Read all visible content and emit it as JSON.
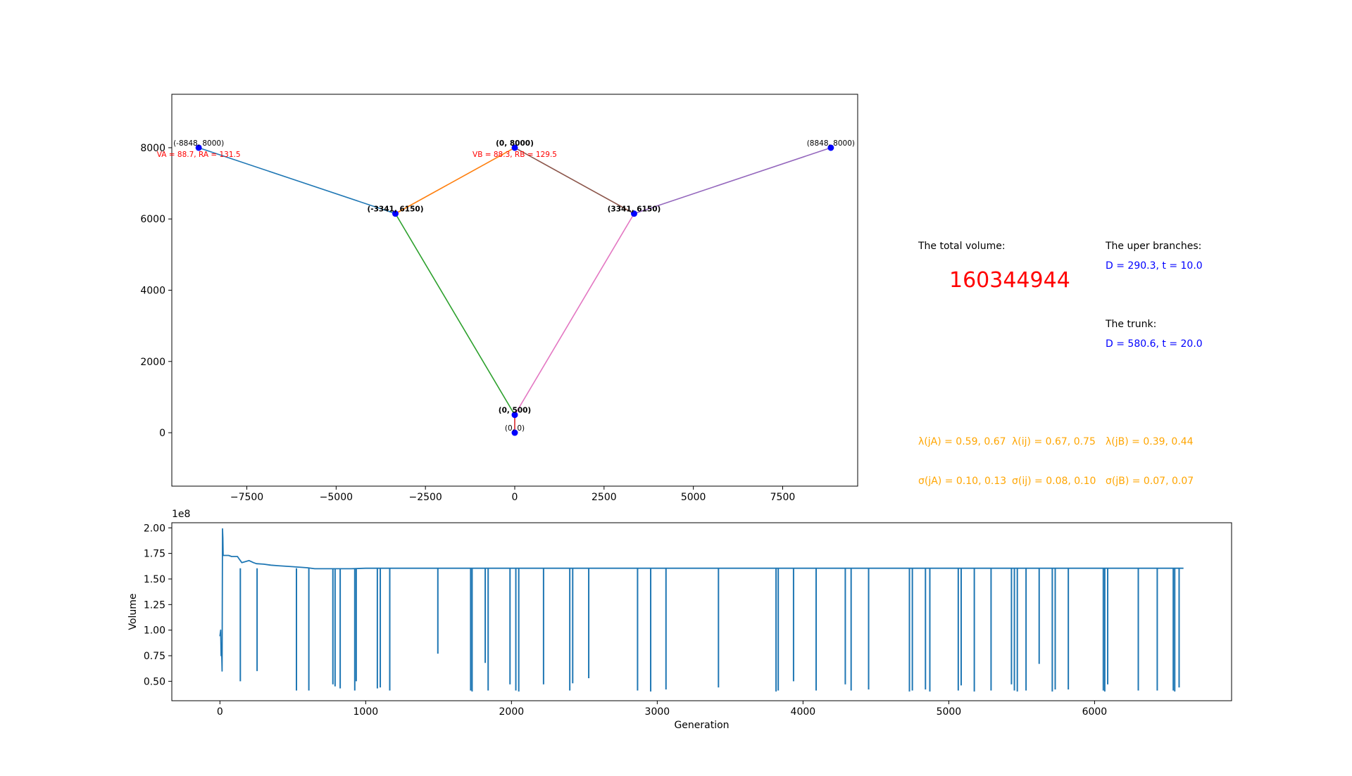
{
  "info": {
    "total_volume_label": "The total volume:",
    "total_volume_value": "160344944",
    "upper_branches_label": "The uper branches:",
    "upper_branches_value": "D = 290.3, t = 10.0",
    "trunk_label": "The trunk:",
    "trunk_value": "D = 580.6, t = 20.0",
    "lambda_jA": "λ(jA) = 0.59, 0.67",
    "lambda_ij": "λ(ij) = 0.67, 0.75",
    "lambda_jB": "λ(jB) = 0.39, 0.44",
    "sigma_jA": "σ(jA) = 0.10, 0.13",
    "sigma_ij": "σ(ij) = 0.08, 0.10",
    "sigma_jB": "σ(jB) = 0.07, 0.07"
  },
  "chart_data": [
    {
      "type": "line",
      "xlim": [
        -9600,
        9600
      ],
      "ylim": [
        -1500,
        9500
      ],
      "xticks": [
        -7500,
        -5000,
        -2500,
        0,
        2500,
        5000,
        7500
      ],
      "xtick_labels": [
        "−7500",
        "−5000",
        "−2500",
        "0",
        "2500",
        "5000",
        "7500"
      ],
      "yticks": [
        0,
        2000,
        4000,
        6000,
        8000
      ],
      "ytick_labels": [
        "0",
        "2000",
        "4000",
        "6000",
        "8000"
      ],
      "nodes": [
        {
          "x": -8848,
          "y": 8000,
          "label": "(-8848, 8000)",
          "bold": false
        },
        {
          "x": 0,
          "y": 8000,
          "label": "(0, 8000)",
          "bold": true
        },
        {
          "x": 8848,
          "y": 8000,
          "label": "(8848, 8000)",
          "bold": false
        },
        {
          "x": -3341,
          "y": 6150,
          "label": "(-3341, 6150)",
          "bold": true
        },
        {
          "x": 3341,
          "y": 6150,
          "label": "(3341, 6150)",
          "bold": true
        },
        {
          "x": 0,
          "y": 500,
          "label": "(0, 500)",
          "bold": true
        },
        {
          "x": 0,
          "y": 0,
          "label": "(0, 0)",
          "bold": false
        }
      ],
      "edges": [
        {
          "from": [
            -8848,
            8000
          ],
          "to": [
            -3341,
            6150
          ],
          "color": "#1f77b4"
        },
        {
          "from": [
            -3341,
            6150
          ],
          "to": [
            0,
            8000
          ],
          "color": "#ff7f0e"
        },
        {
          "from": [
            -3341,
            6150
          ],
          "to": [
            0,
            500
          ],
          "color": "#2ca02c"
        },
        {
          "from": [
            0,
            500
          ],
          "to": [
            0,
            0
          ],
          "color": "#d62728"
        },
        {
          "from": [
            0,
            8000
          ],
          "to": [
            3341,
            6150
          ],
          "color": "#8c564b"
        },
        {
          "from": [
            3341,
            6150
          ],
          "to": [
            8848,
            8000
          ],
          "color": "#9467bd"
        },
        {
          "from": [
            3341,
            6150
          ],
          "to": [
            0,
            500
          ],
          "color": "#e377c2"
        }
      ],
      "annotations": [
        {
          "text": "VA = 88.7, RA = 131.5",
          "x": -8848,
          "y": 7900,
          "color": "#ff0000"
        },
        {
          "text": "VB = 88.3, RB = 129.5",
          "x": 0,
          "y": 7900,
          "color": "#ff0000"
        }
      ]
    },
    {
      "type": "line",
      "xlabel": "Generation",
      "ylabel": "Volume",
      "offset_text": "1e8",
      "xlim": [
        -330,
        6940
      ],
      "ylim": [
        0.31,
        2.05
      ],
      "xticks": [
        0,
        1000,
        2000,
        3000,
        4000,
        5000,
        6000
      ],
      "xtick_labels": [
        "0",
        "1000",
        "2000",
        "3000",
        "4000",
        "5000",
        "6000"
      ],
      "yticks": [
        0.5,
        0.75,
        1.0,
        1.25,
        1.5,
        1.75,
        2.0
      ],
      "ytick_labels": [
        "0.50",
        "0.75",
        "1.00",
        "1.25",
        "1.50",
        "1.75",
        "2.00"
      ],
      "series": [
        {
          "color": "#1f77b4",
          "x": [
            0,
            5,
            8,
            12,
            15,
            18,
            20,
            22,
            25,
            40,
            60,
            80,
            100,
            120,
            130,
            150,
            200,
            230,
            250,
            300,
            350,
            400,
            500,
            600,
            650,
            700,
            800,
            900,
            1000,
            1500,
            2000,
            3000,
            4000,
            5000,
            6000,
            6500,
            6610
          ],
          "y": [
            0.94,
            1.0,
            0.75,
            0.78,
            0.6,
            1.99,
            1.9,
            1.73,
            1.73,
            1.73,
            1.73,
            1.72,
            1.72,
            1.72,
            1.7,
            1.66,
            1.68,
            1.66,
            1.65,
            1.645,
            1.635,
            1.63,
            1.62,
            1.61,
            1.6,
            1.6,
            1.6,
            1.6,
            1.605,
            1.605,
            1.605,
            1.605,
            1.605,
            1.605,
            1.605,
            1.605,
            1.605
          ],
          "baseline": 1.605,
          "dips": [
            [
              140,
              0.5
            ],
            [
              255,
              0.6
            ],
            [
              525,
              0.41
            ],
            [
              610,
              0.41
            ],
            [
              775,
              0.47
            ],
            [
              790,
              0.45
            ],
            [
              825,
              0.43
            ],
            [
              925,
              0.41
            ],
            [
              935,
              0.5
            ],
            [
              1080,
              0.43
            ],
            [
              1100,
              0.44
            ],
            [
              1165,
              0.41
            ],
            [
              1495,
              0.77
            ],
            [
              1720,
              0.41
            ],
            [
              1730,
              0.4
            ],
            [
              1820,
              0.68
            ],
            [
              1840,
              0.41
            ],
            [
              1990,
              0.47
            ],
            [
              2030,
              0.41
            ],
            [
              2050,
              0.4
            ],
            [
              2220,
              0.47
            ],
            [
              2400,
              0.41
            ],
            [
              2420,
              0.48
            ],
            [
              2530,
              0.53
            ],
            [
              2865,
              0.41
            ],
            [
              2955,
              0.4
            ],
            [
              3060,
              0.42
            ],
            [
              3420,
              0.44
            ],
            [
              3815,
              0.4
            ],
            [
              3830,
              0.41
            ],
            [
              3935,
              0.5
            ],
            [
              4090,
              0.41
            ],
            [
              4290,
              0.47
            ],
            [
              4330,
              0.41
            ],
            [
              4450,
              0.42
            ],
            [
              4730,
              0.4
            ],
            [
              4750,
              0.41
            ],
            [
              4840,
              0.42
            ],
            [
              4870,
              0.4
            ],
            [
              5065,
              0.41
            ],
            [
              5085,
              0.46
            ],
            [
              5175,
              0.4
            ],
            [
              5290,
              0.41
            ],
            [
              5430,
              0.47
            ],
            [
              5450,
              0.41
            ],
            [
              5470,
              0.4
            ],
            [
              5530,
              0.41
            ],
            [
              5620,
              0.67
            ],
            [
              5710,
              0.4
            ],
            [
              5730,
              0.42
            ],
            [
              5820,
              0.42
            ],
            [
              6060,
              0.41
            ],
            [
              6070,
              0.4
            ],
            [
              6090,
              0.47
            ],
            [
              6300,
              0.41
            ],
            [
              6430,
              0.41
            ],
            [
              6540,
              0.41
            ],
            [
              6550,
              0.4
            ],
            [
              6580,
              0.44
            ]
          ]
        }
      ]
    }
  ]
}
